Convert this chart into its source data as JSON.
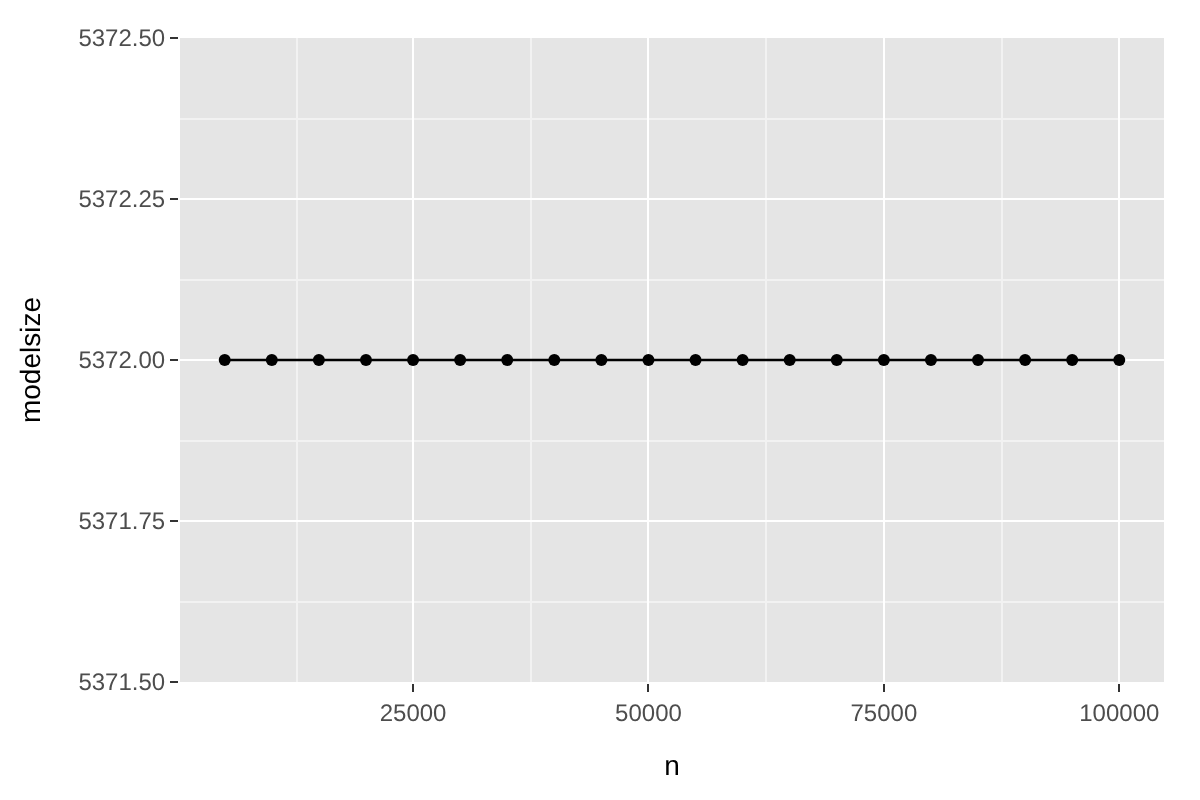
{
  "chart_data": {
    "type": "line",
    "xlabel": "n",
    "ylabel": "modelsize",
    "x": [
      5000,
      10000,
      15000,
      20000,
      25000,
      30000,
      35000,
      40000,
      45000,
      50000,
      55000,
      60000,
      65000,
      70000,
      75000,
      80000,
      85000,
      90000,
      95000,
      100000
    ],
    "series": [
      {
        "color": "#000000",
        "values": [
          5372,
          5372,
          5372,
          5372,
          5372,
          5372,
          5372,
          5372,
          5372,
          5372,
          5372,
          5372,
          5372,
          5372,
          5372,
          5372,
          5372,
          5372,
          5372,
          5372
        ]
      }
    ],
    "xlim": [
      250,
      104750
    ],
    "xticks": [
      25000,
      50000,
      75000,
      100000
    ],
    "ylim": [
      5371.5,
      5372.5
    ],
    "yticks": [
      {
        "value": 5371.5,
        "label": "5371.50"
      },
      {
        "value": 5371.75,
        "label": "5371.75"
      },
      {
        "value": 5372,
        "label": "5372.00"
      },
      {
        "value": 5372.25,
        "label": "5372.25"
      },
      {
        "value": 5372.5,
        "label": "5372.50"
      }
    ],
    "grid": true,
    "marker": "circle",
    "line_style": "solid",
    "legend": false
  }
}
